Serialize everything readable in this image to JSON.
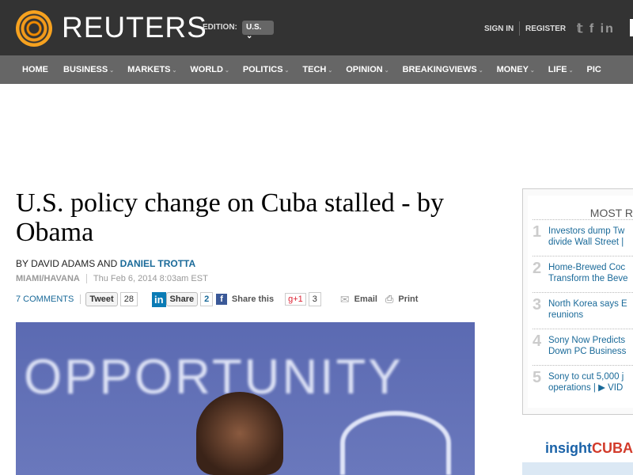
{
  "header": {
    "brand": "REUTERS",
    "edition_label": "EDITION:",
    "edition_value": "U.S. ⌄",
    "sign_in": "SIGN IN",
    "register": "REGISTER",
    "social": "𝕥 f in"
  },
  "nav": [
    {
      "label": "HOME",
      "dd": ""
    },
    {
      "label": "BUSINESS",
      "dd": "⌄"
    },
    {
      "label": "MARKETS",
      "dd": "⌄"
    },
    {
      "label": "WORLD",
      "dd": "⌄"
    },
    {
      "label": "POLITICS",
      "dd": "⌄"
    },
    {
      "label": "TECH",
      "dd": "⌄"
    },
    {
      "label": "OPINION",
      "dd": "⌄"
    },
    {
      "label": "BREAKINGVIEWS",
      "dd": "⌄"
    },
    {
      "label": "MONEY",
      "dd": "⌄"
    },
    {
      "label": "LIFE",
      "dd": "⌄"
    },
    {
      "label": "PIC",
      "dd": ""
    }
  ],
  "article": {
    "title": "U.S. policy change on Cuba stalled - by Obama",
    "by_prefix": "BY DAVID ADAMS AND ",
    "author_link": "DANIEL TROTTA",
    "location": "MIAMI/HAVANA",
    "date": "Thu Feb 6, 2014 8:03am EST",
    "photo_text": "OPPORTUNITY"
  },
  "share": {
    "comments": "7 COMMENTS",
    "tweet": "Tweet",
    "tweet_count": "28",
    "linkedin": "in",
    "linkedin_share": "Share",
    "linkedin_count": "2",
    "fb_icon": "f",
    "fb_label": "Share this",
    "gplus": "g+1",
    "gplus_count": "3",
    "email": "Email",
    "print": "Print"
  },
  "most": {
    "title": "MOST R",
    "items": [
      {
        "n": "1",
        "text": "Investors dump Tw",
        "text2": "divide Wall Street |"
      },
      {
        "n": "2",
        "text": "Home-Brewed Coc",
        "text2": "Transform the Beve"
      },
      {
        "n": "3",
        "text": "North Korea says E",
        "text2": "reunions"
      },
      {
        "n": "4",
        "text": "Sony Now Predicts",
        "text2": "Down PC Business"
      },
      {
        "n": "5",
        "text": "Sony to cut 5,000 j",
        "text2": "operations | ▶ VID"
      }
    ]
  },
  "ad": {
    "a": "insight",
    "b": "CUBA"
  }
}
